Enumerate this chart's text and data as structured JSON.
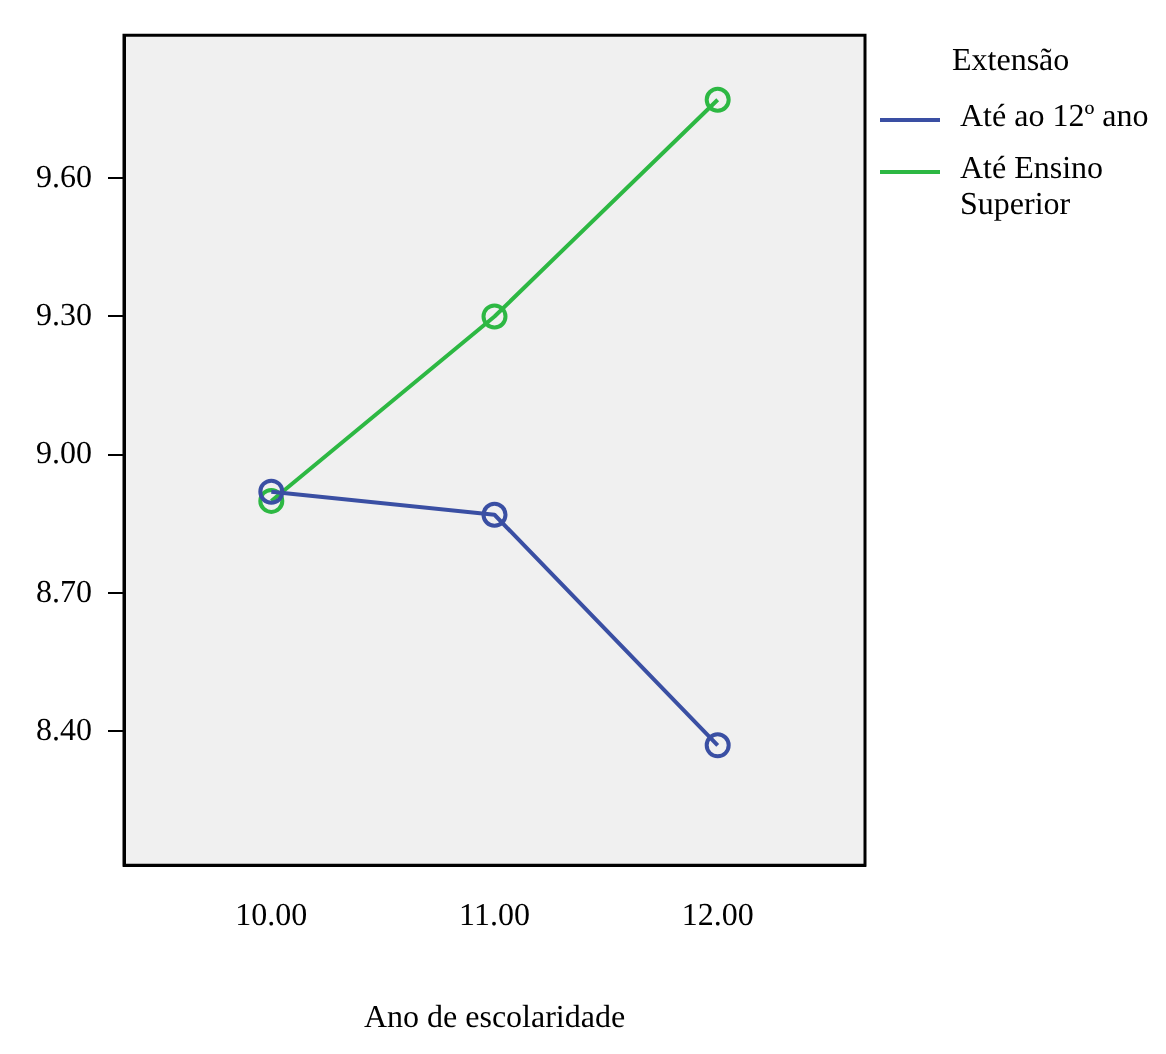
{
  "chart_data": {
    "type": "line",
    "xlabel": "Ano de escolaridade",
    "legend_title": "Extensão",
    "x": [
      10,
      11,
      12
    ],
    "xlim": [
      9.34,
      12.66
    ],
    "xticks": [
      {
        "value": 10,
        "label": "10.00"
      },
      {
        "value": 11,
        "label": "11.00"
      },
      {
        "value": 12,
        "label": "12.00"
      }
    ],
    "ylim": [
      8.11,
      9.91
    ],
    "yticks": [
      {
        "value": 8.4,
        "label": "8.40"
      },
      {
        "value": 8.7,
        "label": "8.70"
      },
      {
        "value": 9.0,
        "label": "9.00"
      },
      {
        "value": 9.3,
        "label": "9.30"
      },
      {
        "value": 9.6,
        "label": "9.60"
      }
    ],
    "series": [
      {
        "name": "Até ao 12º ano",
        "color": "#3a4fa3",
        "values": [
          8.92,
          8.87,
          8.37
        ]
      },
      {
        "name": "Até Ensino Superior",
        "color": "#2db843",
        "values": [
          8.9,
          9.3,
          9.77
        ]
      }
    ],
    "grid": false,
    "legend": "right",
    "marker": "circle",
    "line_style": "solid"
  }
}
